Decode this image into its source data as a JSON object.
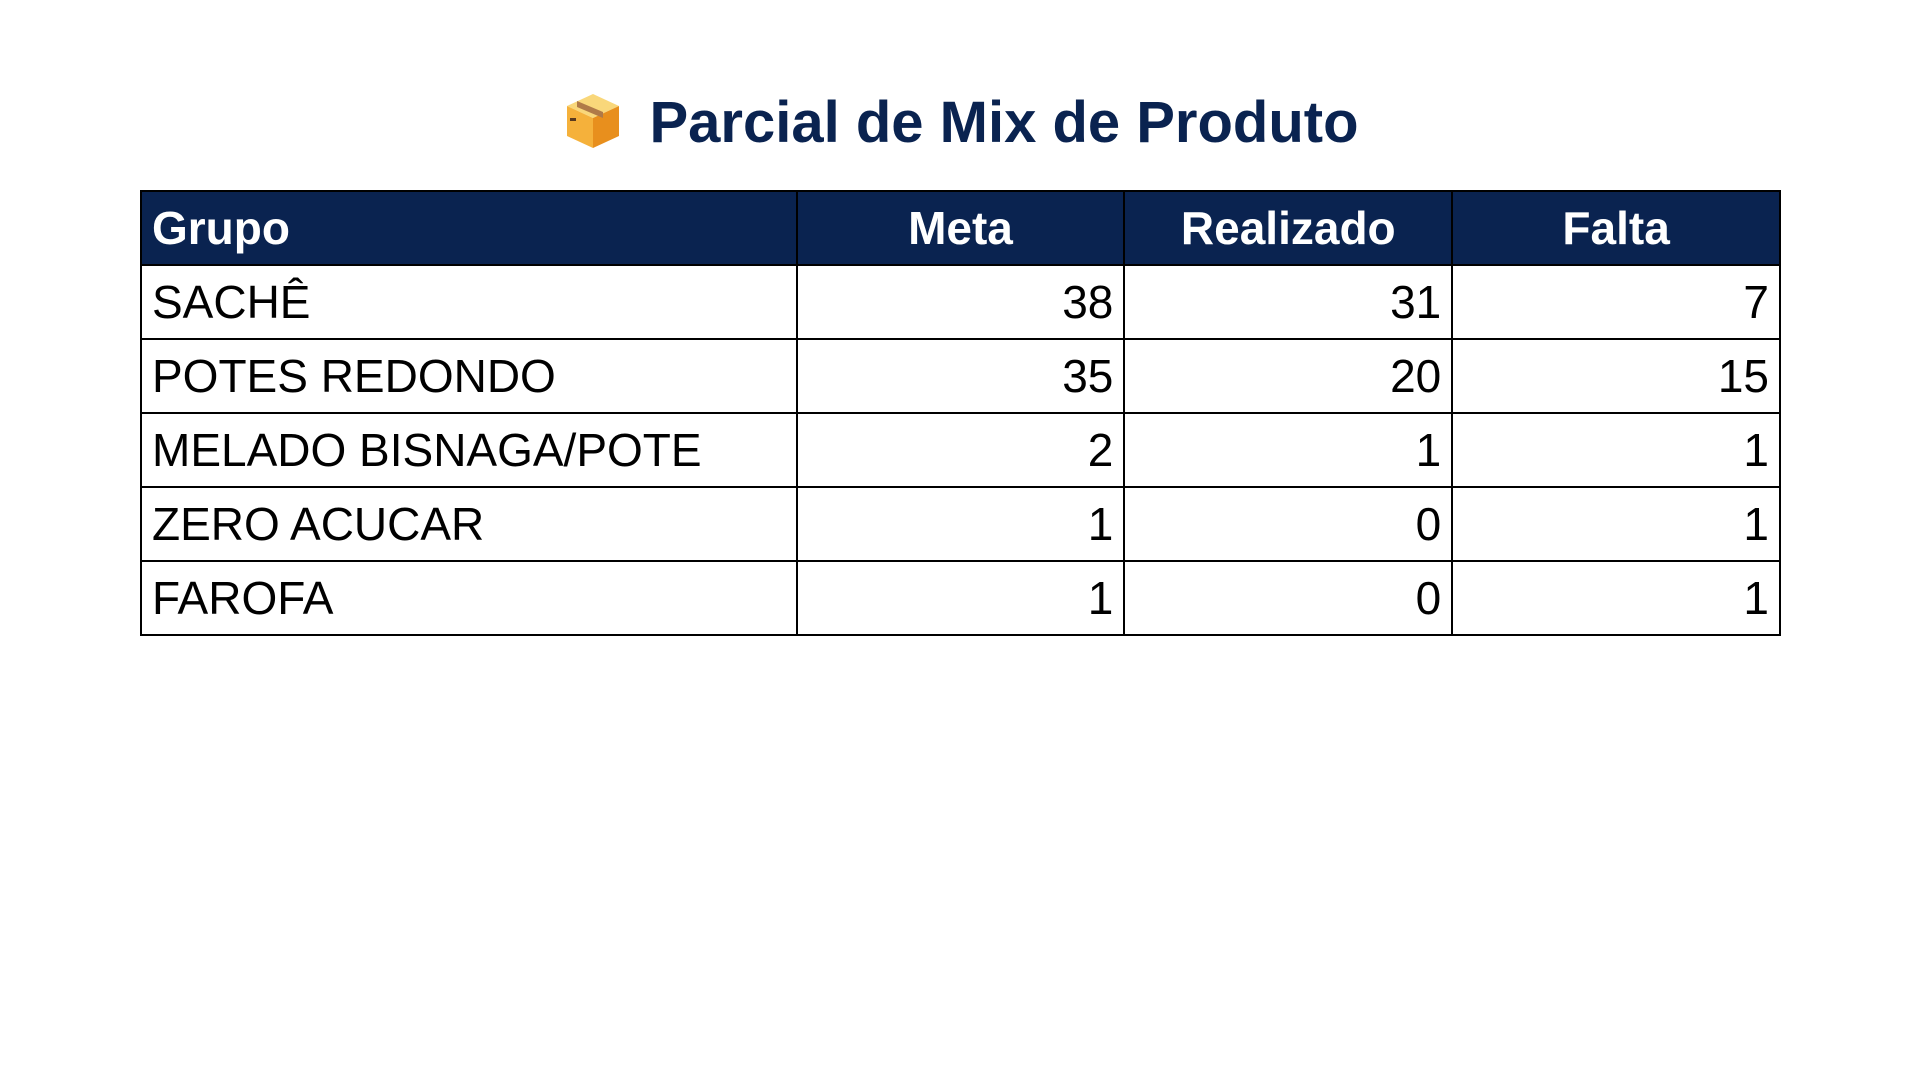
{
  "title": {
    "icon": "package-box-icon",
    "text": "Parcial de Mix de Produto"
  },
  "colors": {
    "header_bg": "#0a2350",
    "title": "#0a2350"
  },
  "table": {
    "headers": [
      "Grupo",
      "Meta",
      "Realizado",
      "Falta"
    ],
    "rows": [
      [
        "SACHÊ",
        "38",
        "31",
        "7"
      ],
      [
        "POTES REDONDO",
        "35",
        "20",
        "15"
      ],
      [
        "MELADO BISNAGA/POTE",
        "2",
        "1",
        "1"
      ],
      [
        "ZERO ACUCAR",
        "1",
        "0",
        "1"
      ],
      [
        "FAROFA",
        "1",
        "0",
        "1"
      ]
    ]
  }
}
